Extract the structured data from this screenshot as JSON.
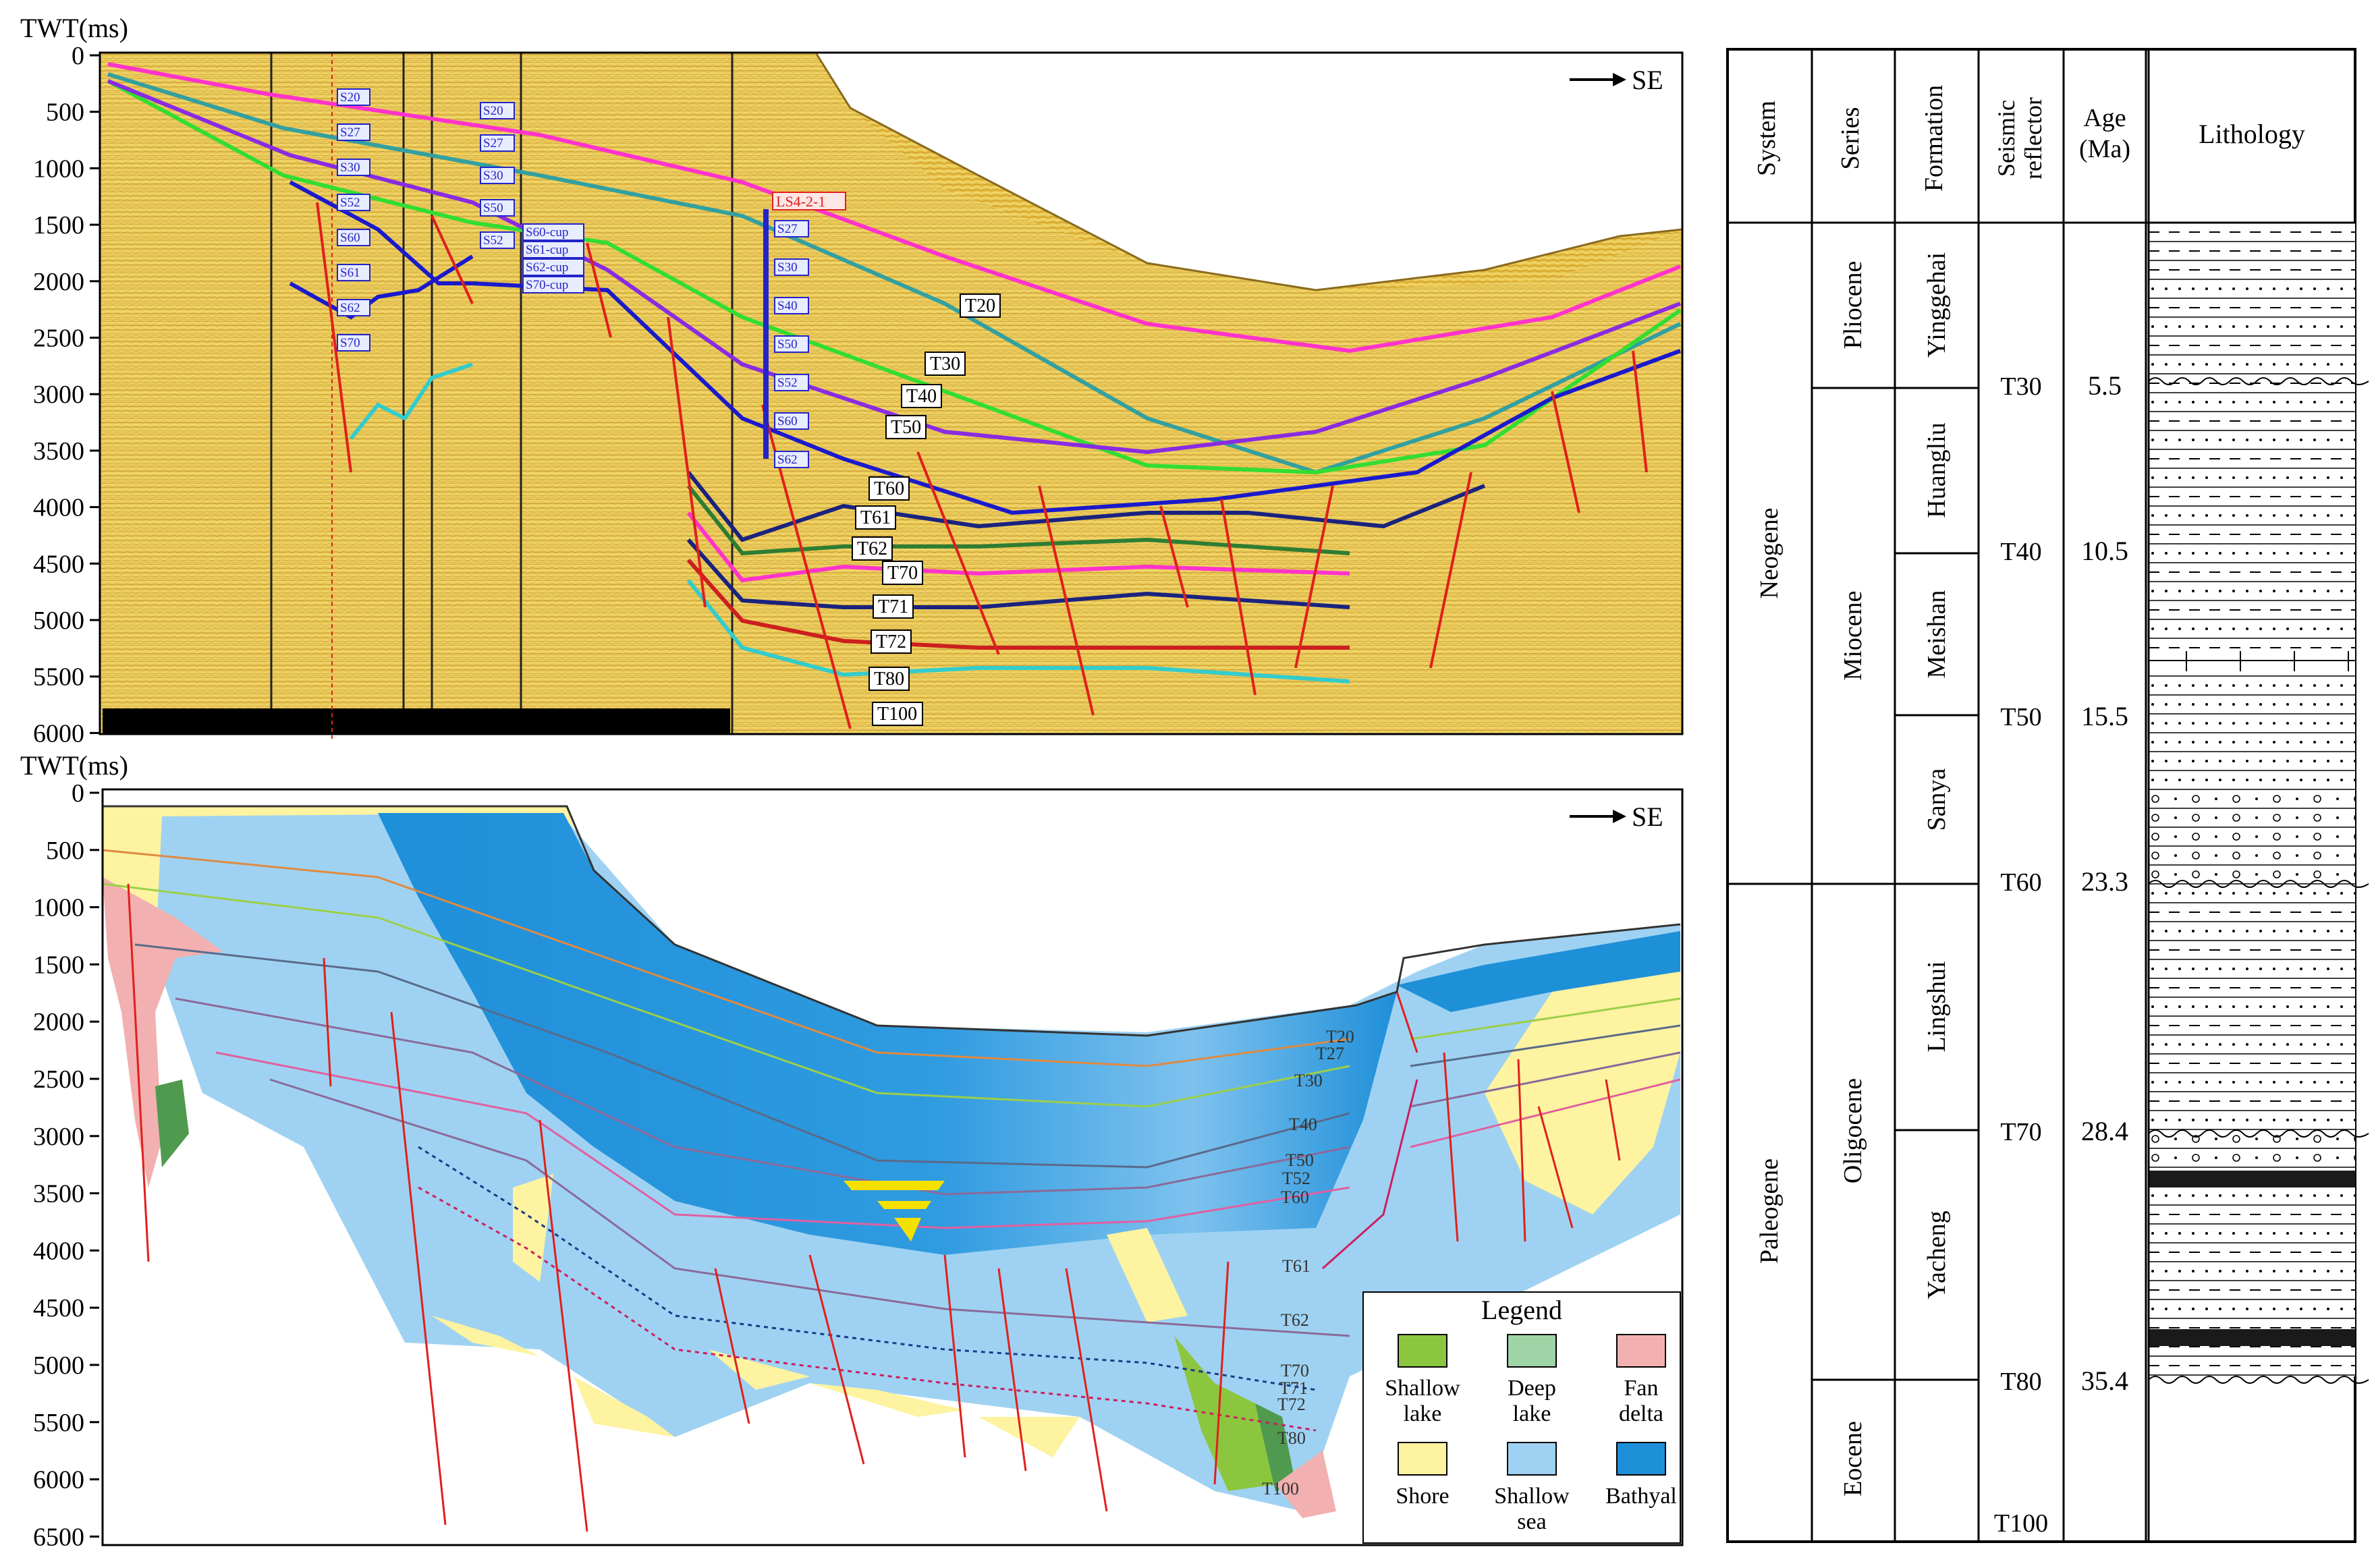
{
  "top_panel": {
    "axis_title": "TWT(ms)",
    "ticks": [
      "0",
      "500",
      "1000",
      "1500",
      "2000",
      "2500",
      "3000",
      "3500",
      "4000",
      "4500",
      "5000",
      "5500",
      "6000"
    ],
    "direction": "SE",
    "reflectors": [
      "T20",
      "T30",
      "T40",
      "T50",
      "T60",
      "T61",
      "T62",
      "T70",
      "T71",
      "T72",
      "T80",
      "T100"
    ],
    "well": "LS4-2-1",
    "well_markers": [
      "S27",
      "S30",
      "S40",
      "S50",
      "S52",
      "S60",
      "S62"
    ],
    "left_well_markers": [
      "S20",
      "S27",
      "S30",
      "S52",
      "S60",
      "S61",
      "S62",
      "S70"
    ],
    "mid_well_markers": [
      "S20",
      "S27",
      "S30",
      "S50",
      "S52",
      "S60-cup",
      "S61-cup",
      "S62-cup",
      "S70-cup"
    ]
  },
  "bottom_panel": {
    "axis_title": "TWT(ms)",
    "ticks": [
      "0",
      "500",
      "1000",
      "1500",
      "2000",
      "2500",
      "3000",
      "3500",
      "4000",
      "4500",
      "5000",
      "5500",
      "6000",
      "6500"
    ],
    "direction": "SE",
    "reflectors": [
      "T20",
      "T27",
      "T30",
      "T40",
      "T50",
      "T52",
      "T60",
      "T61",
      "T62",
      "T70",
      "T71",
      "T72",
      "T80",
      "T100"
    ]
  },
  "legend": {
    "title": "Legend",
    "items": [
      {
        "label_1": "Shallow",
        "label_2": "lake",
        "color": "#8cc63f"
      },
      {
        "label_1": "Deep",
        "label_2": "lake",
        "color": "#9fd4a6"
      },
      {
        "label_1": "Fan",
        "label_2": "delta",
        "color": "#f2b0b0"
      },
      {
        "label_1": "Shore",
        "label_2": "",
        "color": "#fdf3a0"
      },
      {
        "label_1": "Shallow",
        "label_2": "sea",
        "color": "#9fd2f2"
      },
      {
        "label_1": "Bathyal",
        "label_2": "",
        "color": "#1e90d8"
      }
    ]
  },
  "strat_column": {
    "headers": {
      "system": "System",
      "series": "Series",
      "formation": "Formation",
      "reflector_1": "Seismic",
      "reflector_2": "reflector",
      "age_1": "Age",
      "age_2": "(Ma)",
      "lithology": "Lithology"
    },
    "systems": [
      "Neogene",
      "Paleogene"
    ],
    "series": [
      "Pliocene",
      "Miocene",
      "Oligocene",
      "Eocene"
    ],
    "formations": [
      "Yinggehai",
      "Huangliu",
      "Meishan",
      "Sanya",
      "Lingshui",
      "Yacheng"
    ],
    "reflectors": [
      "T30",
      "T40",
      "T50",
      "T60",
      "T70",
      "T80",
      "T100"
    ],
    "ages": [
      "5.5",
      "10.5",
      "15.5",
      "23.3",
      "28.4",
      "35.4"
    ]
  },
  "colors": {
    "seismic_bg": "#e8c54a",
    "fault": "#e0201c",
    "bathyal": "#1e90d8",
    "shallow_sea": "#9fd2f2",
    "shore": "#fdf3a0",
    "fan_delta": "#f2b0b0",
    "shallow_lake": "#8cc63f",
    "deep_lake": "#9fd4a6"
  }
}
